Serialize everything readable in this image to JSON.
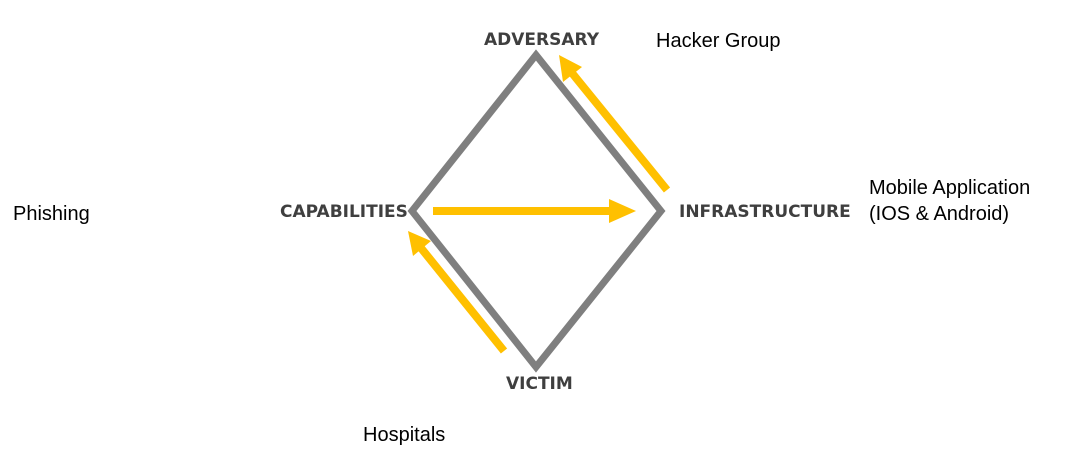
{
  "vertices": {
    "adversary": "ADVERSARY",
    "infrastructure": "INFRASTRUCTURE",
    "capabilities": "CAPABILITIES",
    "victim": "VICTIM"
  },
  "annotations": {
    "adversary": "Hacker Group",
    "infrastructure_line1": "Mobile Application",
    "infrastructure_line2": "(IOS & Android)",
    "capabilities": "Phishing",
    "victim": "Hospitals"
  },
  "colors": {
    "diamond_stroke": "#7f7f7f",
    "arrow": "#ffc000",
    "vertex_text": "#3f3f3f",
    "annotation_text": "#000000"
  }
}
